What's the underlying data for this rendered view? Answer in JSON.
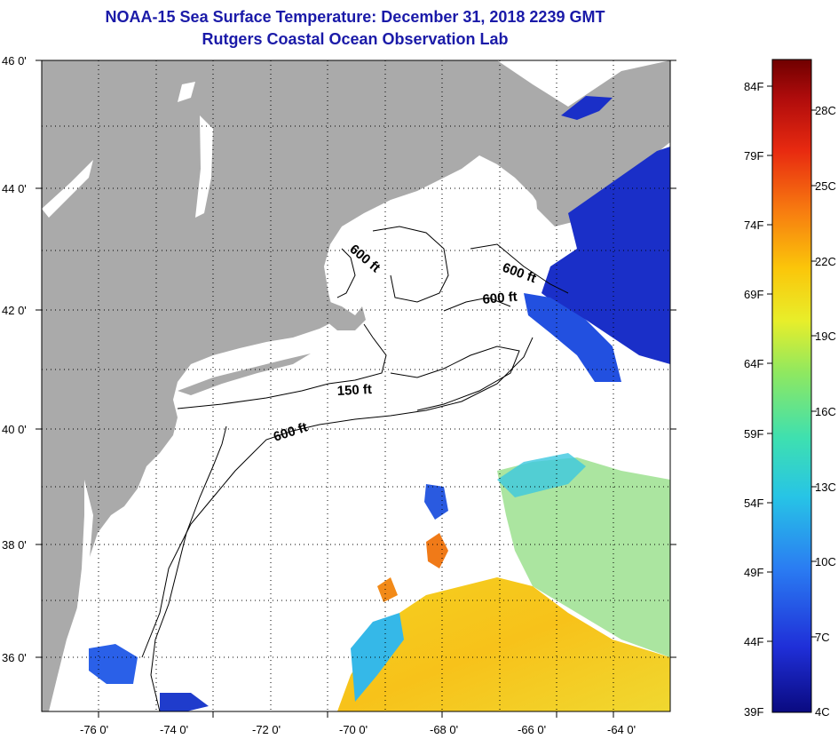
{
  "title": "NOAA-15 Sea Surface Temperature:  December 31, 2018 2239 GMT",
  "subtitle": "Rutgers Coastal Ocean Observation Lab",
  "lat_labels": [
    "46 0'",
    "44 0'",
    "42 0'",
    "40 0'",
    "38 0'",
    "36 0'"
  ],
  "lon_labels": [
    "-76 0'",
    "-74 0'",
    "-72 0'",
    "-70 0'",
    "-68 0'",
    "-66 0'",
    "-64 0'"
  ],
  "contours": {
    "c1": "600 ft",
    "c2": "600 ft",
    "c3": "600 ft",
    "c4": "150 ft",
    "c5": "600 ft"
  },
  "colorbar": {
    "f_labels": [
      "84F",
      "79F",
      "74F",
      "69F",
      "64F",
      "59F",
      "54F",
      "49F",
      "44F",
      "39F"
    ],
    "c_labels": [
      "28C",
      "25C",
      "22C",
      "19C",
      "16C",
      "13C",
      "10C",
      "7C",
      "4C"
    ],
    "min_f": 39,
    "max_f": 86
  },
  "colors": {
    "title": "#1a1aa8",
    "land": "#aaaaaa",
    "ocean": "#ffffff"
  }
}
